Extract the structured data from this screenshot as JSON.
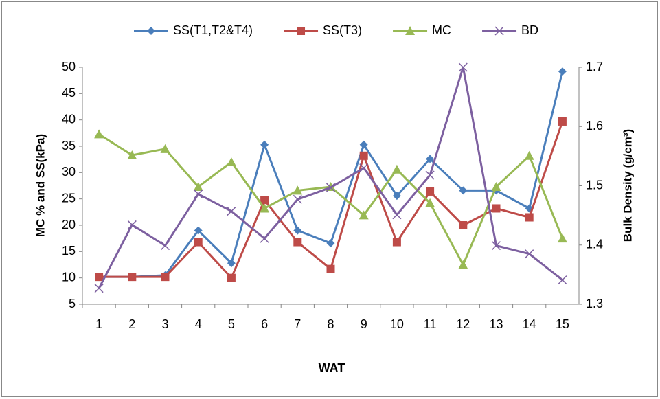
{
  "chart_data": {
    "type": "line",
    "categories": [
      "1",
      "2",
      "3",
      "4",
      "5",
      "6",
      "7",
      "8",
      "9",
      "10",
      "11",
      "12",
      "13",
      "14",
      "15"
    ],
    "series": [
      {
        "name": "SS(T1,T2&T4)",
        "color": "#4a7ebb",
        "marker": "diamond",
        "axis": "y",
        "values": [
          10.2,
          10.2,
          10.5,
          19,
          12.8,
          35.3,
          19,
          16.6,
          35.3,
          25.6,
          32.6,
          26.6,
          26.6,
          23.2,
          49.2
        ]
      },
      {
        "name": "SS(T3)",
        "color": "#be4b48",
        "marker": "square",
        "axis": "y",
        "values": [
          10.2,
          10.2,
          10.2,
          16.8,
          10.0,
          24.8,
          16.8,
          11.7,
          33.2,
          16.8,
          26.4,
          20.0,
          23.2,
          21.5,
          39.7
        ]
      },
      {
        "name": "MC",
        "color": "#98b954",
        "marker": "triangle",
        "axis": "y",
        "values": [
          37.3,
          33.3,
          34.5,
          27.3,
          32.0,
          23.2,
          26.6,
          27.3,
          21.9,
          30.6,
          24.2,
          12.5,
          27.3,
          33.2,
          17.5
        ]
      },
      {
        "name": "BD",
        "color": "#7d60a0",
        "marker": "x",
        "axis": "y2",
        "values": [
          1.327,
          1.434,
          1.399,
          1.486,
          1.457,
          1.411,
          1.477,
          1.497,
          1.53,
          1.451,
          1.518,
          1.7,
          1.399,
          1.385,
          1.341
        ]
      }
    ],
    "xlabel": "WAT",
    "ylabel": "MC % and SS(kPa)",
    "y2label": "Bulk Density (g/cm³)",
    "ylim": [
      5,
      50
    ],
    "yticks": [
      5,
      10,
      15,
      20,
      25,
      30,
      35,
      40,
      45,
      50
    ],
    "y2lim": [
      1.3,
      1.7
    ],
    "y2ticks": [
      1.3,
      1.4,
      1.5,
      1.6,
      1.7
    ],
    "legend": "top",
    "grid": false
  }
}
